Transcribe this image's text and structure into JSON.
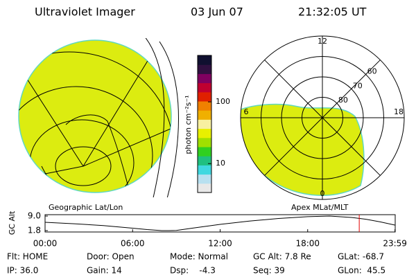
{
  "header": {
    "instrument": "Ultraviolet Imager",
    "date": "03 Jun 07",
    "time": "21:32:05 UT"
  },
  "left_map": {
    "label": "Geographic Lat/Lon"
  },
  "right_map": {
    "label": "Apex MLat/MLT",
    "lat_lim": [
      90,
      50
    ],
    "lat_ticks": [
      80,
      70,
      60
    ],
    "mlt_ticks": [
      12,
      18,
      6,
      0
    ]
  },
  "colorbar": {
    "label": "photon cm⁻²s⁻¹",
    "lim": [
      3.4,
      566
    ],
    "log": true,
    "ticks": [
      10,
      100
    ],
    "colors": [
      "#e8e8e8",
      "#b8e0f0",
      "#40d8e0",
      "#20c080",
      "#30d020",
      "#a0e000",
      "#e8f000",
      "#f8f0a0",
      "#f0b000",
      "#f08000",
      "#e02000",
      "#c00030",
      "#800060",
      "#301040",
      "#101030"
    ]
  },
  "chart_data": {
    "type": "line",
    "ylabel": "GC Alt",
    "x": [
      0,
      2,
      4,
      6,
      7,
      8,
      8.5,
      9,
      10,
      12,
      14,
      16,
      18,
      19.5,
      21,
      22,
      23,
      24
    ],
    "values": [
      5.9,
      5.2,
      4.3,
      3.0,
      2.3,
      1.8,
      1.8,
      1.9,
      2.9,
      4.9,
      6.5,
      7.8,
      8.7,
      9.0,
      8.3,
      7.4,
      6.1,
      4.5
    ],
    "xlim": [
      0,
      24
    ],
    "ylim": [
      1.8,
      9.0
    ],
    "xticks": [
      {
        "value": 0,
        "label": "00:00"
      },
      {
        "value": 6,
        "label": "06:00"
      },
      {
        "value": 12,
        "label": "12:00"
      },
      {
        "value": 18,
        "label": "18:00"
      },
      {
        "value": 23.983,
        "label": "23:59"
      }
    ],
    "yticks": [
      {
        "value": 9.0,
        "label": "9.0"
      },
      {
        "value": 1.8,
        "label": "1.8"
      }
    ],
    "marker_x": 21.535,
    "marker_color": "#e00000",
    "color": "#000000"
  },
  "status": [
    [
      "Flt: HOME",
      "Door: Open",
      "Mode: Normal",
      "GC Alt: 7.8 Re",
      "GLat: -68.7"
    ],
    [
      "IP: 36.0",
      "Gain: 14",
      "Dsp:    -4.3",
      "Seq: 39",
      "GLon:  45.5"
    ]
  ]
}
